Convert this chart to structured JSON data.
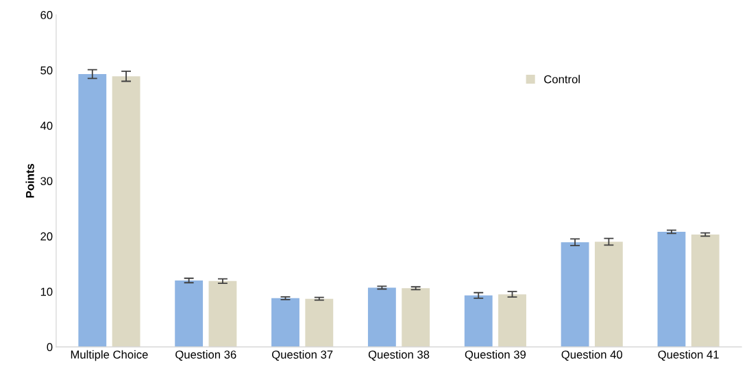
{
  "chart_data": {
    "type": "bar",
    "ylabel": "Points",
    "categories": [
      "Multiple Choice",
      "Question 36",
      "Question 37",
      "Question 38",
      "Question 39",
      "Question 40",
      "Question 41"
    ],
    "series": [
      {
        "color": "#8eb4e3",
        "values": [
          49.3,
          12.0,
          8.8,
          10.7,
          9.3,
          18.9,
          20.8
        ],
        "errors": [
          0.8,
          0.4,
          0.25,
          0.25,
          0.5,
          0.6,
          0.3
        ]
      },
      {
        "name": "Control",
        "color": "#ddd9c3",
        "values": [
          48.9,
          11.9,
          8.7,
          10.6,
          9.5,
          19.0,
          20.3
        ],
        "errors": [
          0.9,
          0.4,
          0.25,
          0.25,
          0.5,
          0.6,
          0.3
        ]
      }
    ],
    "ylim": [
      0,
      60
    ],
    "yticks": [
      0,
      10,
      20,
      30,
      40,
      50,
      60
    ],
    "grid": false,
    "legend": "top right"
  }
}
